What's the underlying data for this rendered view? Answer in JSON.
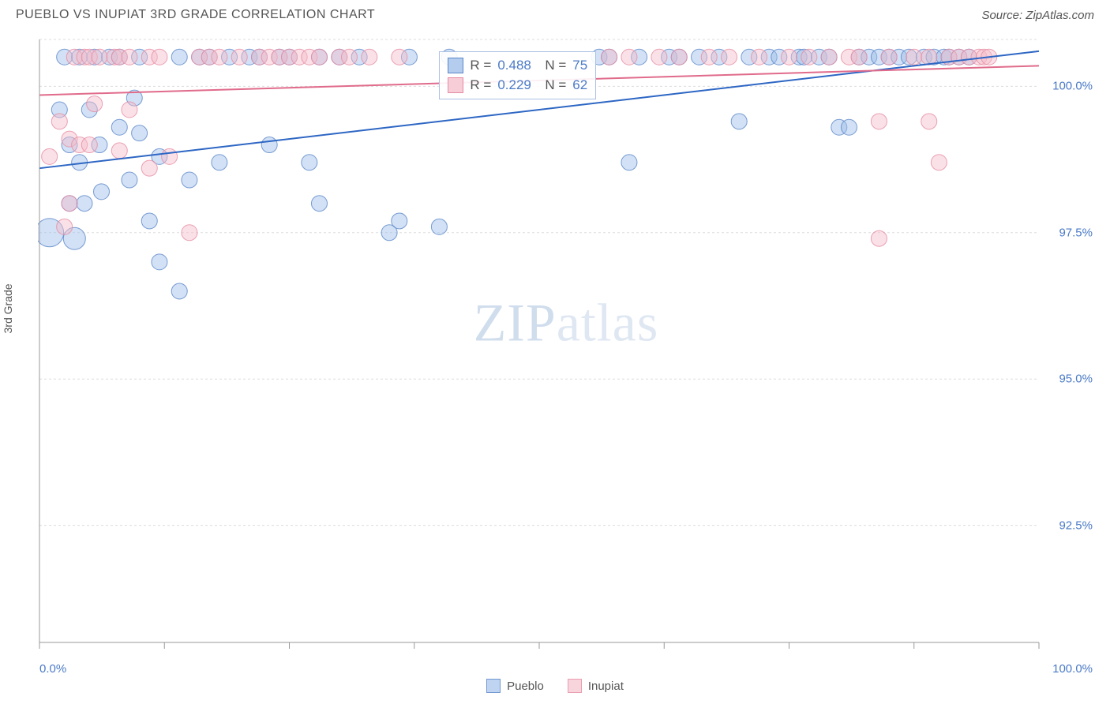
{
  "title": "PUEBLO VS INUPIAT 3RD GRADE CORRELATION CHART",
  "source": "Source: ZipAtlas.com",
  "ylabel": "3rd Grade",
  "watermark_zip": "ZIP",
  "watermark_atlas": "atlas",
  "chart": {
    "type": "scatter",
    "xlim": [
      0,
      100
    ],
    "ylim": [
      90.5,
      100.8
    ],
    "yticks": [
      92.5,
      95.0,
      97.5,
      100.0
    ],
    "ytick_labels": [
      "92.5%",
      "95.0%",
      "97.5%",
      "100.0%"
    ],
    "xtick_positions": [
      0,
      12.5,
      25,
      37.5,
      50,
      62.5,
      75,
      87.5,
      100
    ],
    "xaxis_label_left": "0.0%",
    "xaxis_label_right": "100.0%",
    "grid_color": "#dcdcdc",
    "axis_color": "#999",
    "background_color": "#ffffff",
    "marker_radius": 10,
    "marker_opacity": 0.45,
    "marker_stroke_opacity": 0.8,
    "series": [
      {
        "name": "Pueblo",
        "fill": "#9cbde8",
        "stroke": "#5a86c8",
        "swatch_fill": "#b4cdee",
        "swatch_border": "#5a86c8",
        "regression": {
          "x1": 0,
          "y1": 98.6,
          "x2": 100,
          "y2": 100.6,
          "color": "#2d66c4",
          "width": 2
        },
        "R": "0.488",
        "N": "75",
        "points": [
          [
            1,
            97.5,
            18
          ],
          [
            2,
            99.6,
            10
          ],
          [
            2.5,
            100.5,
            10
          ],
          [
            3,
            99.0,
            10
          ],
          [
            3,
            98.0,
            10
          ],
          [
            3.5,
            97.4,
            14
          ],
          [
            4,
            100.5,
            10
          ],
          [
            4,
            98.7,
            10
          ],
          [
            4.5,
            98.0,
            10
          ],
          [
            5,
            99.6,
            10
          ],
          [
            5.5,
            100.5,
            10
          ],
          [
            6,
            99.0,
            10
          ],
          [
            6.2,
            98.2,
            10
          ],
          [
            7,
            100.5,
            10
          ],
          [
            8,
            99.3,
            10
          ],
          [
            8,
            100.5,
            10
          ],
          [
            9,
            98.4,
            10
          ],
          [
            9.5,
            99.8,
            10
          ],
          [
            10,
            99.2,
            10
          ],
          [
            10,
            100.5,
            10
          ],
          [
            11,
            97.7,
            10
          ],
          [
            12,
            98.8,
            10
          ],
          [
            12,
            97.0,
            10
          ],
          [
            14,
            100.5,
            10
          ],
          [
            14,
            96.5,
            10
          ],
          [
            15,
            98.4,
            10
          ],
          [
            16,
            100.5,
            10
          ],
          [
            17,
            100.5,
            10
          ],
          [
            18,
            98.7,
            10
          ],
          [
            19,
            100.5,
            10
          ],
          [
            21,
            100.5,
            10
          ],
          [
            22,
            100.5,
            10
          ],
          [
            23,
            99.0,
            10
          ],
          [
            24,
            100.5,
            10
          ],
          [
            25,
            100.5,
            10
          ],
          [
            27,
            98.7,
            10
          ],
          [
            28,
            100.5,
            10
          ],
          [
            28,
            98.0,
            10
          ],
          [
            30,
            100.5,
            10
          ],
          [
            32,
            100.5,
            10
          ],
          [
            35,
            97.5,
            10
          ],
          [
            36,
            97.7,
            10
          ],
          [
            37,
            100.5,
            10
          ],
          [
            40,
            97.6,
            10
          ],
          [
            41,
            100.5,
            10
          ],
          [
            56,
            100.5,
            10
          ],
          [
            57,
            100.5,
            10
          ],
          [
            59,
            98.7,
            10
          ],
          [
            60,
            100.5,
            10
          ],
          [
            63,
            100.5,
            10
          ],
          [
            64,
            100.5,
            10
          ],
          [
            66,
            100.5,
            10
          ],
          [
            68,
            100.5,
            10
          ],
          [
            70,
            99.4,
            10
          ],
          [
            71,
            100.5,
            10
          ],
          [
            73,
            100.5,
            10
          ],
          [
            74,
            100.5,
            10
          ],
          [
            76,
            100.5,
            10
          ],
          [
            76.5,
            100.5,
            10
          ],
          [
            78,
            100.5,
            10
          ],
          [
            79,
            100.5,
            10
          ],
          [
            80,
            99.3,
            10
          ],
          [
            81,
            99.3,
            10
          ],
          [
            82,
            100.5,
            10
          ],
          [
            83,
            100.5,
            10
          ],
          [
            84,
            100.5,
            10
          ],
          [
            85,
            100.5,
            10
          ],
          [
            86,
            100.5,
            10
          ],
          [
            87,
            100.5,
            10
          ],
          [
            88.5,
            100.5,
            10
          ],
          [
            89.5,
            100.5,
            10
          ],
          [
            90.5,
            100.5,
            10
          ],
          [
            91,
            100.5,
            10
          ],
          [
            92,
            100.5,
            10
          ],
          [
            93,
            100.5,
            10
          ]
        ]
      },
      {
        "name": "Inupiat",
        "fill": "#f4bcca",
        "stroke": "#e68ba3",
        "swatch_fill": "#f7cdd8",
        "swatch_border": "#e68ba3",
        "regression": {
          "x1": 0,
          "y1": 99.85,
          "x2": 100,
          "y2": 100.35,
          "color": "#e06b8b",
          "width": 2
        },
        "R": "0.229",
        "N": "62",
        "points": [
          [
            1,
            98.8,
            10
          ],
          [
            2,
            99.4,
            10
          ],
          [
            2.5,
            97.6,
            10
          ],
          [
            3,
            99.1,
            10
          ],
          [
            3,
            98.0,
            10
          ],
          [
            3.5,
            100.5,
            10
          ],
          [
            4,
            99.0,
            10
          ],
          [
            4.5,
            100.5,
            10
          ],
          [
            5,
            99.0,
            10
          ],
          [
            5,
            100.5,
            10
          ],
          [
            5.5,
            99.7,
            10
          ],
          [
            6,
            100.5,
            10
          ],
          [
            7.5,
            100.5,
            10
          ],
          [
            8,
            98.9,
            10
          ],
          [
            8,
            100.5,
            10
          ],
          [
            9,
            100.5,
            10
          ],
          [
            9,
            99.6,
            10
          ],
          [
            11,
            100.5,
            10
          ],
          [
            11,
            98.6,
            10
          ],
          [
            12,
            100.5,
            10
          ],
          [
            13,
            98.8,
            10
          ],
          [
            15,
            97.5,
            10
          ],
          [
            16,
            100.5,
            10
          ],
          [
            17,
            100.5,
            10
          ],
          [
            18,
            100.5,
            10
          ],
          [
            20,
            100.5,
            10
          ],
          [
            22,
            100.5,
            10
          ],
          [
            23,
            100.5,
            10
          ],
          [
            24,
            100.5,
            10
          ],
          [
            25,
            100.5,
            10
          ],
          [
            26,
            100.5,
            10
          ],
          [
            27,
            100.5,
            10
          ],
          [
            28,
            100.5,
            10
          ],
          [
            30,
            100.5,
            10
          ],
          [
            31,
            100.5,
            10
          ],
          [
            33,
            100.5,
            10
          ],
          [
            36,
            100.5,
            10
          ],
          [
            57,
            100.5,
            10
          ],
          [
            59,
            100.5,
            10
          ],
          [
            62,
            100.5,
            10
          ],
          [
            64,
            100.5,
            10
          ],
          [
            67,
            100.5,
            10
          ],
          [
            69,
            100.5,
            10
          ],
          [
            72,
            100.5,
            10
          ],
          [
            75,
            100.5,
            10
          ],
          [
            77,
            100.5,
            10
          ],
          [
            79,
            100.5,
            10
          ],
          [
            81,
            100.5,
            10
          ],
          [
            82,
            100.5,
            10
          ],
          [
            84,
            99.4,
            10
          ],
          [
            84,
            97.4,
            10
          ],
          [
            85,
            100.5,
            10
          ],
          [
            87.5,
            100.5,
            10
          ],
          [
            89,
            99.4,
            10
          ],
          [
            89,
            100.5,
            10
          ],
          [
            90,
            98.7,
            10
          ],
          [
            91,
            100.5,
            10
          ],
          [
            92,
            100.5,
            10
          ],
          [
            93,
            100.5,
            10
          ],
          [
            94,
            100.5,
            10
          ],
          [
            94.5,
            100.5,
            10
          ],
          [
            95,
            100.5,
            10
          ]
        ]
      }
    ],
    "legend_bottom": [
      {
        "label": "Pueblo",
        "series": 0
      },
      {
        "label": "Inupiat",
        "series": 1
      }
    ]
  }
}
